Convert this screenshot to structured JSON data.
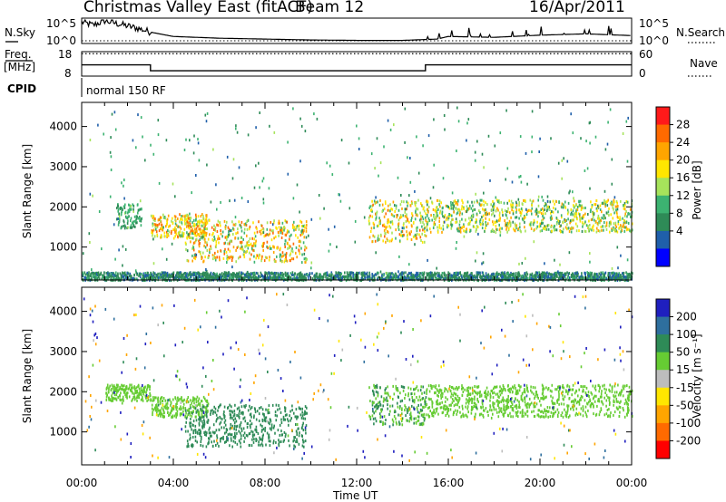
{
  "header": {
    "title": "Christmas Valley East (fitACF)",
    "beam": "Beam 12",
    "date": "16/Apr/2011"
  },
  "panels": {
    "nsky": {
      "label": "N.Sky",
      "right_label": "N.Search",
      "left_ticks": [
        "10^5",
        "10^0"
      ],
      "right_ticks": [
        "10^5",
        "10^0"
      ]
    },
    "freq": {
      "label_line1": "Freq.",
      "label_line2": "[MHz]",
      "left_ticks": [
        "18",
        "8"
      ],
      "right_ticks": [
        "60",
        "0"
      ],
      "right_label": "Nave"
    },
    "cpid": {
      "label": "CPID",
      "mode_text": "normal 150 RF"
    }
  },
  "x_axis": {
    "label": "Time UT",
    "ticks": [
      "00:00",
      "04:00",
      "08:00",
      "12:00",
      "16:00",
      "20:00",
      "00:00"
    ]
  },
  "power_colorbar": {
    "label": "Power [dB]",
    "ticks": [
      "28",
      "24",
      "20",
      "16",
      "12",
      "8",
      "4"
    ],
    "colors": [
      "#ff1a1a",
      "#ff6a00",
      "#ffa500",
      "#ffe600",
      "#a6e35b",
      "#3cb371",
      "#2e8b57",
      "#1f5faa",
      "#0000ff"
    ]
  },
  "velocity_colorbar": {
    "label": "Velocity [m s⁻¹]",
    "ticks": [
      "200",
      "100",
      "50",
      "15",
      "-15",
      "-50",
      "-100",
      "-200"
    ],
    "colors": [
      "#1f1fbf",
      "#2e6f9e",
      "#2e8b57",
      "#66cc33",
      "#bdbdbd",
      "#ffe600",
      "#ffa500",
      "#ff6a00",
      "#ff0000"
    ]
  },
  "chart_data": [
    {
      "type": "line",
      "title": "Christmas Valley East (fitACF)",
      "xlabel": "Time UT",
      "ylabel": "N.Sky",
      "series": [
        {
          "name": "N.Sky",
          "x_hours": [
            0,
            0.5,
            1,
            1.5,
            2,
            2.5,
            3,
            4,
            6,
            8,
            10,
            12,
            14,
            15.5,
            16,
            18,
            20,
            22,
            24
          ],
          "values_log": [
            4.5,
            3.8,
            4.8,
            4.2,
            3.6,
            3.0,
            2.2,
            1.2,
            0.8,
            0.6,
            0.4,
            0.3,
            0.3,
            0.6,
            1.2,
            1.0,
            1.5,
            1.8,
            1.4
          ]
        },
        {
          "name": "N.Search",
          "x_hours": [
            0,
            24
          ],
          "values_log": [
            0.3,
            0.3
          ]
        }
      ]
    },
    {
      "type": "line",
      "ylabel": "Freq. [MHz]",
      "series": [
        {
          "name": "Freq",
          "x_hours": [
            0,
            3,
            3,
            15,
            15,
            24
          ],
          "values": [
            12.6,
            12.6,
            10.2,
            10.2,
            12.6,
            12.6
          ]
        },
        {
          "name": "Nave",
          "x_hours": [
            0,
            24
          ],
          "values": [
            55,
            55
          ]
        }
      ]
    },
    {
      "type": "heatmap",
      "ylabel": "Slant Range [km]",
      "xlabel": "Time UT",
      "ylim": [
        180,
        4600
      ],
      "yticks": [
        1000,
        2000,
        3000,
        4000
      ],
      "quantity": "Power [dB]",
      "features": [
        {
          "x_hours": [
            1.5,
            2.6
          ],
          "range_km": [
            1500,
            2100
          ],
          "power_db": [
            6,
            14
          ]
        },
        {
          "x_hours": [
            3.0,
            5.5
          ],
          "range_km": [
            1250,
            1850
          ],
          "power_db": [
            12,
            26
          ]
        },
        {
          "x_hours": [
            4.5,
            9.8
          ],
          "range_km": [
            650,
            1700
          ],
          "power_db": [
            10,
            28
          ]
        },
        {
          "x_hours": [
            12.5,
            15.0
          ],
          "range_km": [
            1150,
            2200
          ],
          "power_db": [
            10,
            26
          ]
        },
        {
          "x_hours": [
            15.0,
            24.0
          ],
          "range_km": [
            1400,
            2200
          ],
          "power_db": [
            8,
            24
          ]
        },
        {
          "x_hours": [
            0.0,
            24.0
          ],
          "range_km": [
            200,
            400
          ],
          "power_db": [
            4,
            10
          ]
        }
      ]
    },
    {
      "type": "heatmap",
      "ylabel": "Slant Range [km]",
      "xlabel": "Time UT",
      "ylim": [
        180,
        4600
      ],
      "yticks": [
        1000,
        2000,
        3000,
        4000
      ],
      "quantity": "Velocity [m s^-1]",
      "features": [
        {
          "x_hours": [
            1.0,
            3.0
          ],
          "range_km": [
            1800,
            2200
          ],
          "velocity": [
            -15,
            15
          ]
        },
        {
          "x_hours": [
            3.0,
            5.5
          ],
          "range_km": [
            1400,
            1900
          ],
          "velocity": [
            -15,
            15
          ]
        },
        {
          "x_hours": [
            4.5,
            9.8
          ],
          "range_km": [
            650,
            1700
          ],
          "velocity": [
            15,
            50
          ]
        },
        {
          "x_hours": [
            12.5,
            15.0
          ],
          "range_km": [
            1200,
            2200
          ],
          "velocity": [
            -15,
            50
          ]
        },
        {
          "x_hours": [
            15.0,
            24.0
          ],
          "range_km": [
            1400,
            2200
          ],
          "velocity": [
            -15,
            15
          ]
        }
      ]
    }
  ]
}
